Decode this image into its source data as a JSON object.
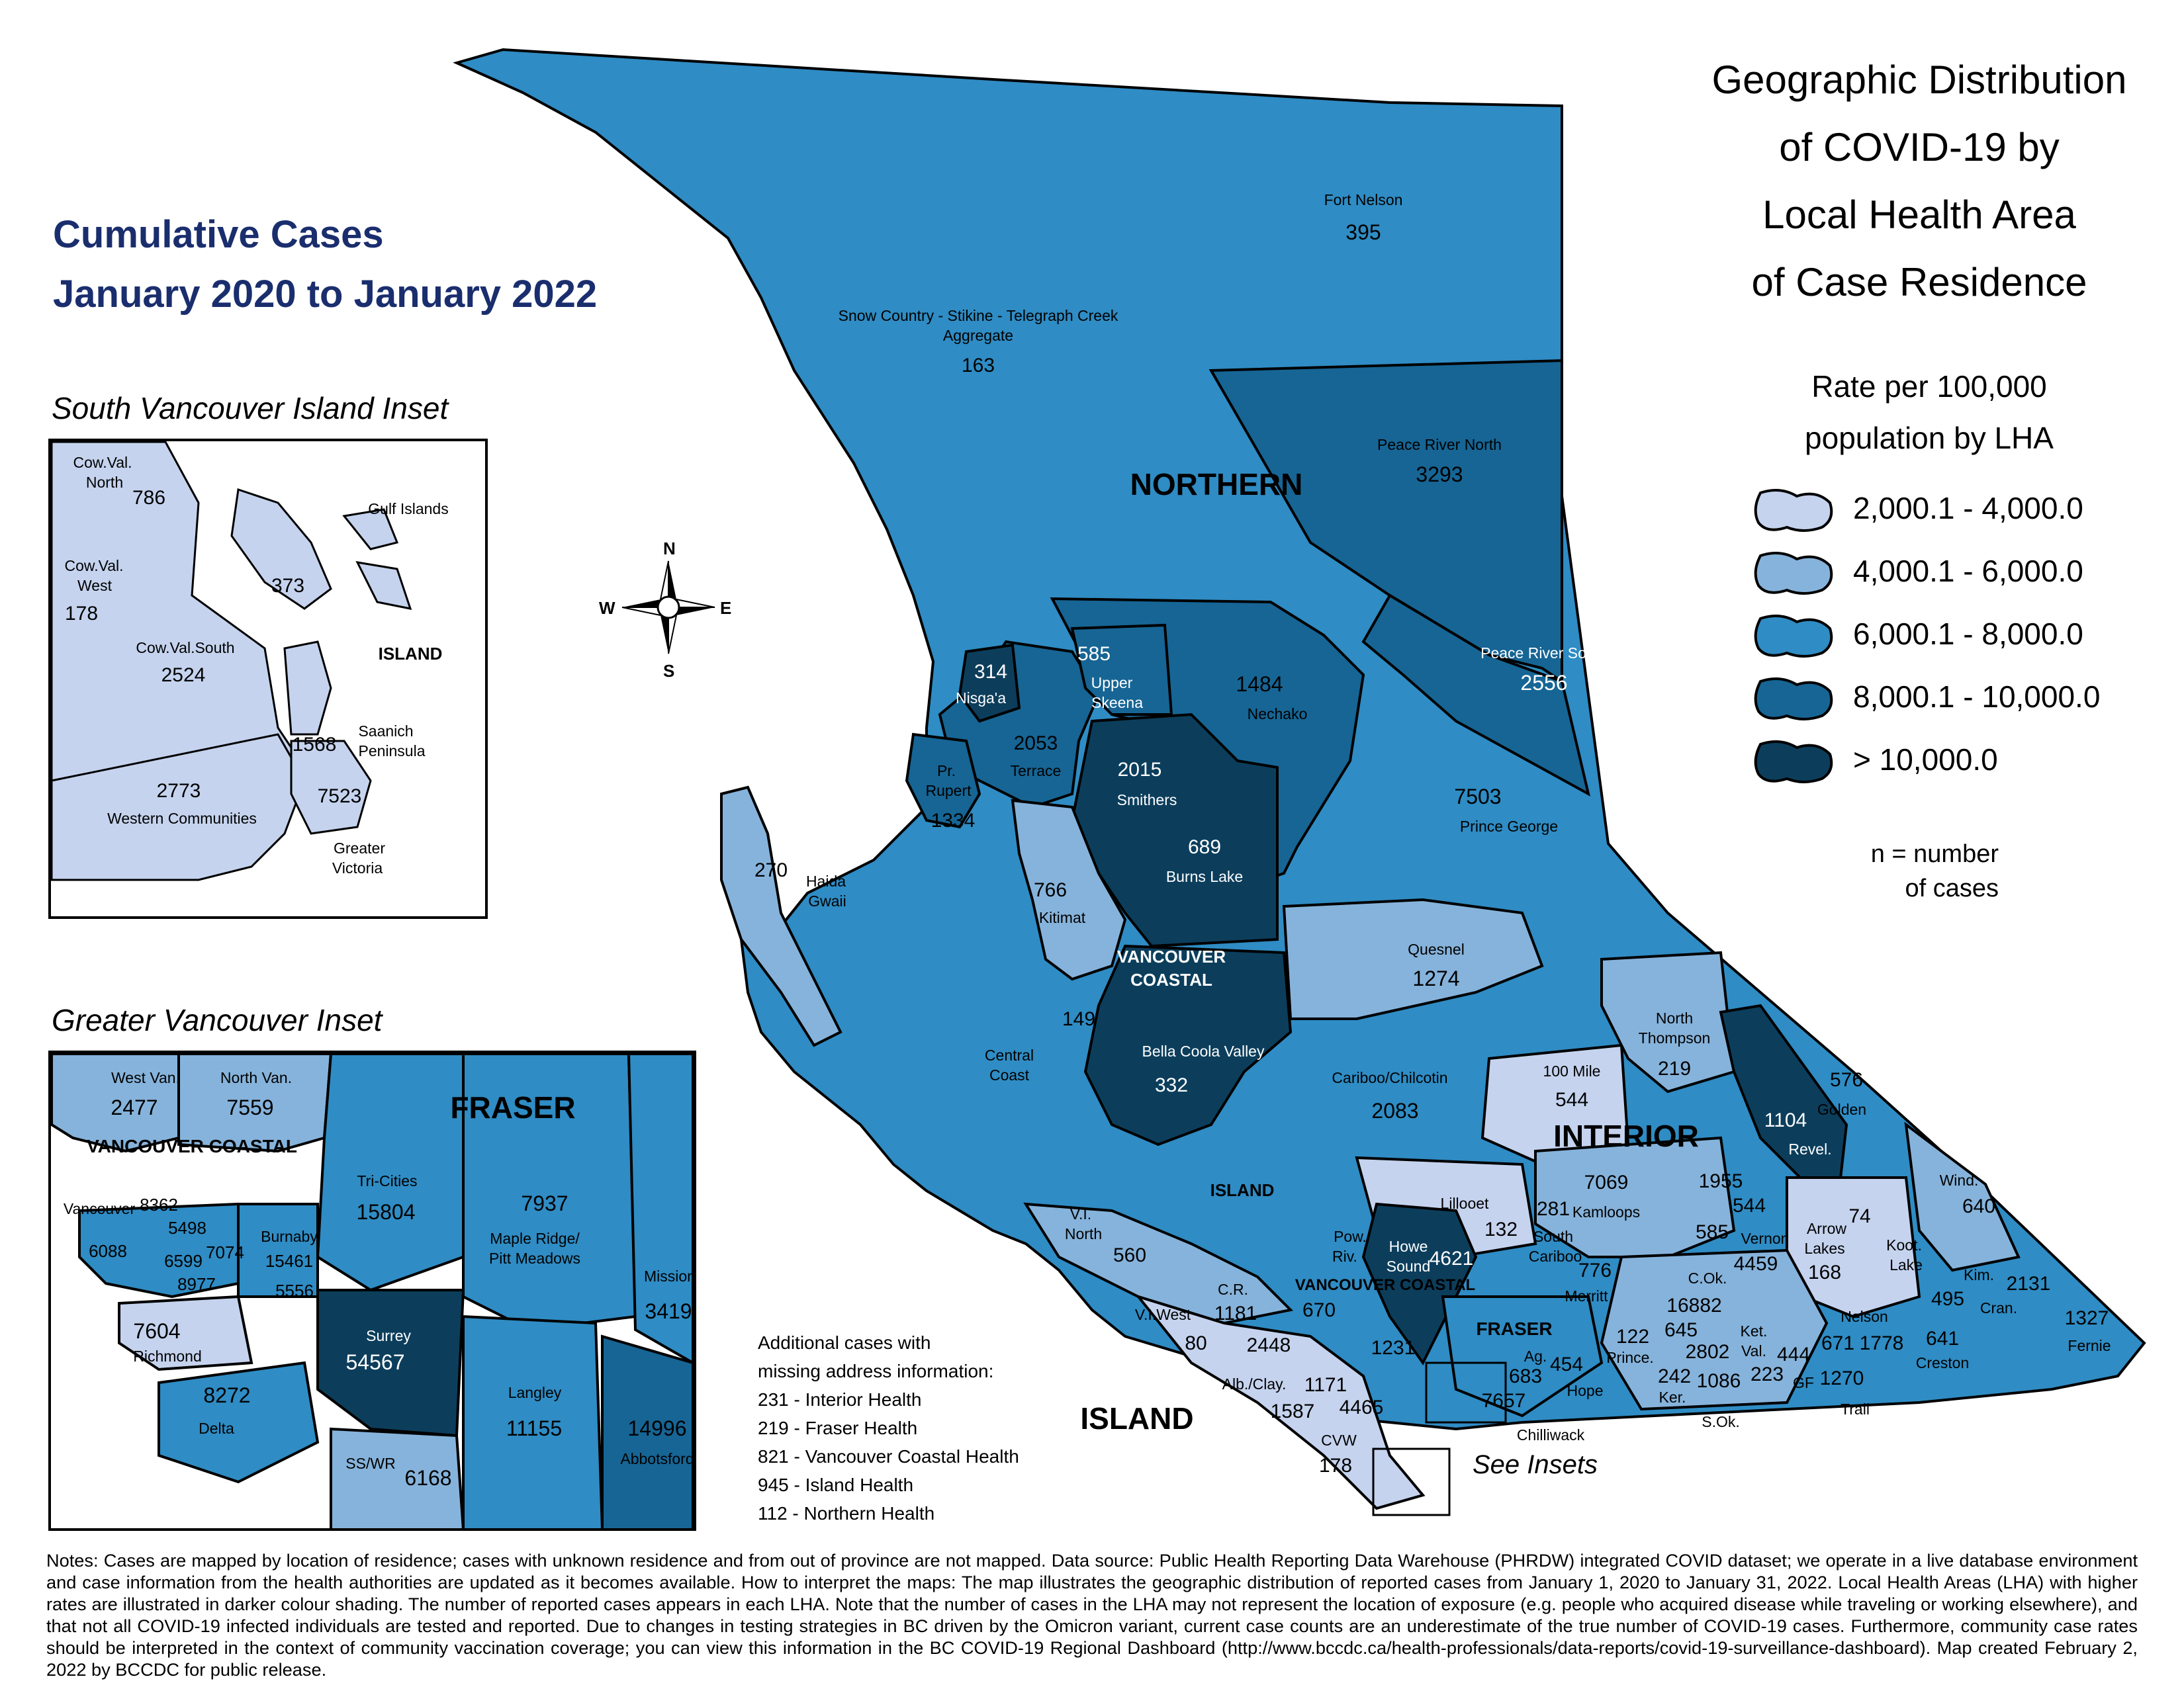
{
  "title": {
    "lines": [
      "Geographic Distribution",
      "of COVID-19 by",
      "Local Health Area",
      "of Case Residence"
    ]
  },
  "subtitle": {
    "line1": "Cumulative Cases",
    "line2": "January 2020 to January 2022"
  },
  "legend": {
    "title_line1": "Rate per 100,000",
    "title_line2": "population by LHA",
    "items": [
      {
        "label": "2,000.1 - 4,000.0",
        "color": "#c5d3ee"
      },
      {
        "label": "4,000.1 - 6,000.0",
        "color": "#86b3db"
      },
      {
        "label": "6,000.1 - 8,000.0",
        "color": "#2f8cc4"
      },
      {
        "label": "8,000.1 - 10,000.0",
        "color": "#166595"
      },
      {
        "label": "> 10,000.0",
        "color": "#0c3e5c"
      }
    ],
    "n_line1": "n = number",
    "n_line2": "of cases"
  },
  "regions": {
    "northern": "NORTHERN",
    "interior": "INTERIOR",
    "vancouver_coastal_line1": "VANCOUVER",
    "vancouver_coastal_line2": "COASTAL",
    "island": "ISLAND",
    "island_small": "ISLAND",
    "fraser": "FRASER",
    "vc_small": "VANCOUVER COASTAL",
    "island_inset": "ISLAND",
    "fraser_inset": "FRASER",
    "vancouver_coastal_inset": "VANCOUVER COASTAL"
  },
  "compass": {
    "n": "N",
    "s": "S",
    "e": "E",
    "w": "W"
  },
  "insets": {
    "south_vi_title": "South Vancouver Island Inset",
    "greater_van_title": "Greater Vancouver Inset"
  },
  "see_insets": "See Insets",
  "missing": {
    "line1": "Additional cases with",
    "line2": "missing address information:",
    "items": [
      "231 - Interior Health",
      "219 - Fraser Health",
      "821 - Vancouver Coastal Health",
      "945 - Island Health",
      "112 - Northern Health"
    ]
  },
  "map_labels": {
    "fort_nelson": "Fort Nelson",
    "fort_nelson_n": "395",
    "snow_country_1": "Snow Country - Stikine - Telegraph Creek",
    "snow_country_2": "Aggregate",
    "snow_country_n": "163",
    "peace_north": "Peace River North",
    "peace_north_n": "3293",
    "peace_south": "Peace River South",
    "peace_south_n": "2556",
    "nechako": "Nechako",
    "nechako_n": "1484",
    "upper_skeena_n": "585",
    "upper_skeena_1": "Upper",
    "upper_skeena_2": "Skeena",
    "nisgaa_n": "314",
    "nisgaa": "Nisga'a",
    "terrace_n": "2053",
    "terrace": "Terrace",
    "pr_rupert_1": "Pr.",
    "pr_rupert_2": "Rupert",
    "pr_rupert_n": "1334",
    "smithers_n": "2015",
    "smithers": "Smithers",
    "prince_george_n": "7503",
    "prince_george": "Prince George",
    "burns_lake_n": "689",
    "burns_lake": "Burns Lake",
    "haida_n": "270",
    "haida_1": "Haida",
    "haida_2": "Gwaii",
    "kitimat_n": "766",
    "kitimat": "Kitimat",
    "quesnel": "Quesnel",
    "quesnel_n": "1274",
    "central_coast_n": "149",
    "central_coast_1": "Central",
    "central_coast_2": "Coast",
    "bella_coola": "Bella Coola Valley",
    "bella_coola_n": "332",
    "cariboo": "Cariboo/Chilcotin",
    "cariboo_n": "2083",
    "north_thompson_1": "North",
    "north_thompson_2": "Thompson",
    "north_thompson_n": "219",
    "hundred_mile": "100 Mile",
    "hundred_mile_n": "544",
    "revel_n": "1104",
    "revel": "Revel.",
    "golden_n": "576",
    "golden": "Golden",
    "kamloops_n": "7069",
    "kamloops": "Kamloops",
    "n1955": "1955",
    "n544b": "544",
    "n585b": "585",
    "lillooet": "Lillooet",
    "lillooet_n": "132",
    "south_cariboo_n": "281",
    "south_cariboo_1": "South",
    "south_cariboo_2": "Cariboo",
    "vernon": "Vernon",
    "vernon_n": "4459",
    "arrow_1": "Arrow",
    "arrow_2": "Lakes",
    "arrow_n": "168",
    "koot_n": "74",
    "koot_1": "Koot.",
    "koot_2": "Lake",
    "wind": "Wind.",
    "wind_n": "640",
    "vi_north_1": "V.I.",
    "vi_north_2": "North",
    "vi_north_n": "560",
    "pow_1": "Pow.",
    "pow_2": "Riv.",
    "howe_1": "Howe",
    "howe_2": "Sound",
    "howe_n": "4621",
    "merritt_n": "776",
    "merritt": "Merritt",
    "cok": "C.Ok.",
    "cok_n": "16882",
    "kim": "Kim.",
    "kim_n": "2131",
    "n495": "495",
    "cran": "Cran.",
    "fernie_n": "1327",
    "fernie": "Fernie",
    "cr": "C.R.",
    "cr_n": "1181",
    "vi_west": "V.I.West",
    "vi_west_n": "80",
    "n670": "670",
    "n2448": "2448",
    "n1231": "1231",
    "ag": "Ag.",
    "ag_n": "683",
    "n454": "454",
    "hope": "Hope",
    "n7657": "7657",
    "chilliwack": "Chilliwack",
    "prince_n": "122",
    "prince": "Prince.",
    "n645": "645",
    "n2802": "2802",
    "ket_1": "Ket.",
    "ket_2": "Val.",
    "n444": "444",
    "nelson": "Nelson",
    "n671": "671",
    "n1778": "1778",
    "n641": "641",
    "creston": "Creston",
    "n242": "242",
    "ker": "Ker.",
    "n1086": "1086",
    "n223": "223",
    "gf": "GF",
    "n1270": "1270",
    "sok": "S.Ok.",
    "trail": "Trail",
    "alb": "Alb./Clay.",
    "alb_n": "1587",
    "n1171": "1171",
    "n4465": "4465",
    "cvw": "CVW",
    "cvw_n": "178"
  },
  "svi_labels": {
    "cow_n_1": "Cow.Val.",
    "cow_n_2": "North",
    "cow_n_n": "786",
    "gulf": "Gulf Islands",
    "gulf_n": "373",
    "cow_w_1": "Cow.Val.",
    "cow_w_2": "West",
    "cow_w_n": "178",
    "cow_s": "Cow.Val.South",
    "cow_s_n": "2524",
    "saanich_n": "1568",
    "saanich_1": "Saanich",
    "saanich_2": "Peninsula",
    "western_n": "2773",
    "western": "Western Communities",
    "victoria_n": "7523",
    "victoria_1": "Greater",
    "victoria_2": "Victoria"
  },
  "gv_labels": {
    "west_van": "West Van.",
    "west_van_n": "2477",
    "north_van": "North Van.",
    "north_van_n": "7559",
    "tri_cities": "Tri-Cities",
    "tri_cities_n": "15804",
    "maple_n": "7937",
    "maple_1": "Maple Ridge/",
    "maple_2": "Pitt Meadows",
    "mission": "Mission",
    "mission_n": "3419",
    "vancouver": "Vancouver",
    "n8362": "8362",
    "n5498": "5498",
    "n6088": "6088",
    "n6599": "6599",
    "n7074": "7074",
    "n8977": "8977",
    "burnaby": "Burnaby",
    "burnaby_n": "15461",
    "n5556": "5556",
    "richmond_n": "7604",
    "richmond": "Richmond",
    "surrey": "Surrey",
    "surrey_n": "54567",
    "delta_n": "8272",
    "delta": "Delta",
    "langley": "Langley",
    "langley_n": "11155",
    "abbotsford_n": "14996",
    "abbotsford": "Abbotsford",
    "sswr": "SS/WR",
    "sswr_n": "6168"
  },
  "notes": "Notes: Cases are mapped by location of residence; cases with unknown residence and from out of province are not mapped. Data source: Public Health Reporting Data Warehouse (PHRDW) integrated COVID dataset; we operate in a live database environment and case information from the health authorities are updated as it becomes available. How to interpret the maps: The map illustrates the geographic distribution of reported cases from January 1, 2020 to January 31, 2022. Local Health Areas (LHA) with higher rates are illustrated in darker colour shading. The number of reported cases appears in each LHA. Note that the number of cases in the LHA may not represent the location of exposure (e.g. people who acquired disease while traveling or working elsewhere), and that not all COVID-19 infected individuals are tested and reported. Due to changes in testing strategies in BC driven by the Omicron variant, current case counts are an underestimate of the true number of COVID-19 cases. Furthermore, community case rates should be interpreted in the context of community vaccination coverage; you can view this information in the BC COVID-19 Regional Dashboard (http://www.bccdc.ca/health-professionals/data-reports/covid-19-surveillance-dashboard). Map created February 2, 2022 by BCCDC for public release."
}
